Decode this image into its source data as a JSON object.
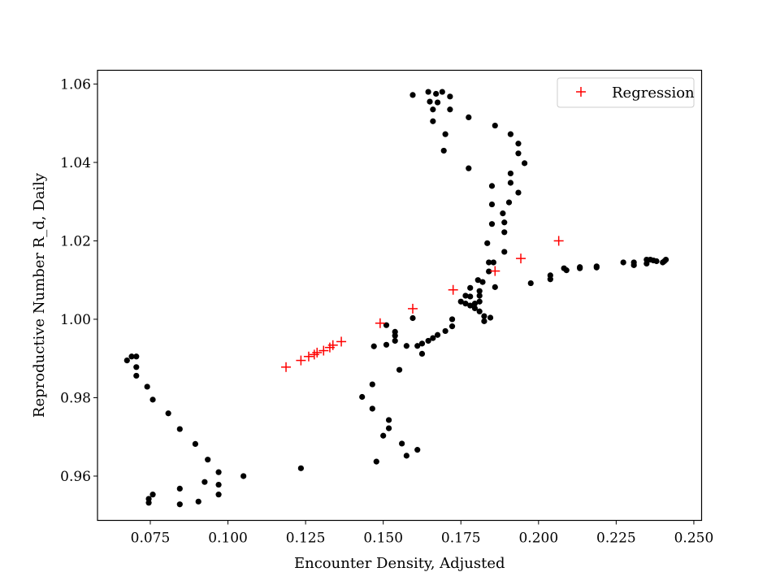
{
  "chart_data": {
    "type": "scatter",
    "title": "",
    "xlabel": "Encounter Density, Adjusted",
    "ylabel": "Reproductive Number R_d, Daily",
    "xlim": [
      0.058,
      0.2525
    ],
    "ylim": [
      0.9487,
      1.0635
    ],
    "xticks": [
      0.075,
      0.1,
      0.125,
      0.15,
      0.175,
      0.2,
      0.225,
      0.25
    ],
    "xtick_labels": [
      "0.075",
      "0.100",
      "0.125",
      "0.150",
      "0.175",
      "0.200",
      "0.225",
      "0.250"
    ],
    "yticks": [
      0.96,
      0.98,
      1.0,
      1.02,
      1.04,
      1.06
    ],
    "ytick_labels": [
      "0.96",
      "0.98",
      "1.00",
      "1.02",
      "1.04",
      "1.06"
    ],
    "grid": false,
    "legend_position": "top-right",
    "series": [
      {
        "marker": "dot",
        "color": "#000000",
        "points": [
          [
            0.0675,
            0.9895
          ],
          [
            0.069,
            0.9905
          ],
          [
            0.0705,
            0.9905
          ],
          [
            0.0705,
            0.9878
          ],
          [
            0.0705,
            0.9856
          ],
          [
            0.074,
            0.9828
          ],
          [
            0.0758,
            0.9795
          ],
          [
            0.0808,
            0.976
          ],
          [
            0.0845,
            0.972
          ],
          [
            0.0895,
            0.9682
          ],
          [
            0.0935,
            0.9642
          ],
          [
            0.097,
            0.961
          ],
          [
            0.0925,
            0.9585
          ],
          [
            0.097,
            0.9578
          ],
          [
            0.097,
            0.9553
          ],
          [
            0.105,
            0.96
          ],
          [
            0.0845,
            0.9568
          ],
          [
            0.0845,
            0.9528
          ],
          [
            0.0905,
            0.9535
          ],
          [
            0.0758,
            0.9553
          ],
          [
            0.0745,
            0.9542
          ],
          [
            0.0745,
            0.9532
          ],
          [
            0.1235,
            0.962
          ],
          [
            0.1432,
            0.9802
          ],
          [
            0.1465,
            0.9834
          ],
          [
            0.1465,
            0.9772
          ],
          [
            0.1478,
            0.9637
          ],
          [
            0.15,
            0.9703
          ],
          [
            0.1518,
            0.9743
          ],
          [
            0.1518,
            0.9722
          ],
          [
            0.156,
            0.9683
          ],
          [
            0.1575,
            0.9652
          ],
          [
            0.161,
            0.9667
          ],
          [
            0.1552,
            0.9871
          ],
          [
            0.147,
            0.9931
          ],
          [
            0.151,
            0.9935
          ],
          [
            0.1538,
            0.9945
          ],
          [
            0.1538,
            0.9958
          ],
          [
            0.1538,
            0.9968
          ],
          [
            0.151,
            0.9985
          ],
          [
            0.1575,
            0.9932
          ],
          [
            0.161,
            0.9932
          ],
          [
            0.1625,
            0.9912
          ],
          [
            0.1625,
            0.9938
          ],
          [
            0.1645,
            0.9945
          ],
          [
            0.166,
            0.9952
          ],
          [
            0.1675,
            0.996
          ],
          [
            0.17,
            0.997
          ],
          [
            0.1722,
            0.9982
          ],
          [
            0.1722,
            1.0
          ],
          [
            0.1595,
            1.0003
          ],
          [
            0.175,
            1.0045
          ],
          [
            0.1765,
            1.004
          ],
          [
            0.178,
            1.0035
          ],
          [
            0.1795,
            1.004
          ],
          [
            0.178,
            1.0058
          ],
          [
            0.181,
            1.0045
          ],
          [
            0.181,
            1.006
          ],
          [
            0.181,
            1.0072
          ],
          [
            0.1795,
            1.0028
          ],
          [
            0.181,
            1.002
          ],
          [
            0.1825,
            1.0008
          ],
          [
            0.1825,
            0.9995
          ],
          [
            0.1845,
            1.0004
          ],
          [
            0.1765,
            1.006
          ],
          [
            0.178,
            1.008
          ],
          [
            0.1805,
            1.01
          ],
          [
            0.182,
            1.0095
          ],
          [
            0.184,
            1.0122
          ],
          [
            0.184,
            1.0145
          ],
          [
            0.1855,
            1.0145
          ],
          [
            0.1835,
            1.0194
          ],
          [
            0.186,
            1.0082
          ],
          [
            0.185,
            1.0243
          ],
          [
            0.185,
            1.0293
          ],
          [
            0.185,
            1.034
          ],
          [
            0.189,
            1.0172
          ],
          [
            0.189,
            1.0222
          ],
          [
            0.189,
            1.0247
          ],
          [
            0.1885,
            1.027
          ],
          [
            0.1905,
            1.0298
          ],
          [
            0.191,
            1.0348
          ],
          [
            0.191,
            1.0372
          ],
          [
            0.1935,
            1.0323
          ],
          [
            0.1955,
            1.0398
          ],
          [
            0.1935,
            1.0423
          ],
          [
            0.1935,
            1.0448
          ],
          [
            0.191,
            1.0472
          ],
          [
            0.186,
            1.0494
          ],
          [
            0.1775,
            1.0385
          ],
          [
            0.1775,
            1.0515
          ],
          [
            0.17,
            1.0472
          ],
          [
            0.1695,
            1.043
          ],
          [
            0.1595,
            1.0572
          ],
          [
            0.1645,
            1.058
          ],
          [
            0.165,
            1.0555
          ],
          [
            0.166,
            1.0535
          ],
          [
            0.167,
            1.0575
          ],
          [
            0.1675,
            1.0553
          ],
          [
            0.169,
            1.058
          ],
          [
            0.1715,
            1.0568
          ],
          [
            0.1715,
            1.0535
          ],
          [
            0.166,
            1.0505
          ],
          [
            0.1975,
            1.0092
          ],
          [
            0.2038,
            1.0102
          ],
          [
            0.2038,
            1.0112
          ],
          [
            0.2082,
            1.013
          ],
          [
            0.209,
            1.0125
          ],
          [
            0.2133,
            1.013
          ],
          [
            0.2133,
            1.0133
          ],
          [
            0.2187,
            1.0135
          ],
          [
            0.2187,
            1.0132
          ],
          [
            0.2273,
            1.0145
          ],
          [
            0.2307,
            1.0138
          ],
          [
            0.2307,
            1.0145
          ],
          [
            0.2348,
            1.0142
          ],
          [
            0.2348,
            1.0152
          ],
          [
            0.236,
            1.0152
          ],
          [
            0.237,
            1.015
          ],
          [
            0.238,
            1.0148
          ],
          [
            0.24,
            1.0145
          ],
          [
            0.2405,
            1.0148
          ],
          [
            0.241,
            1.0152
          ]
        ]
      },
      {
        "name": "Regression",
        "marker": "plus",
        "color": "#ff0000",
        "points": [
          [
            0.1187,
            0.9878
          ],
          [
            0.1235,
            0.9895
          ],
          [
            0.126,
            0.9905
          ],
          [
            0.1278,
            0.991
          ],
          [
            0.1287,
            0.9915
          ],
          [
            0.1308,
            0.992
          ],
          [
            0.1328,
            0.9928
          ],
          [
            0.1338,
            0.9934
          ],
          [
            0.1365,
            0.9943
          ],
          [
            0.149,
            0.999
          ],
          [
            0.1595,
            1.0027
          ],
          [
            0.1725,
            1.0075
          ],
          [
            0.186,
            1.0123
          ],
          [
            0.1943,
            1.0155
          ],
          [
            0.2065,
            1.02
          ]
        ]
      }
    ]
  }
}
